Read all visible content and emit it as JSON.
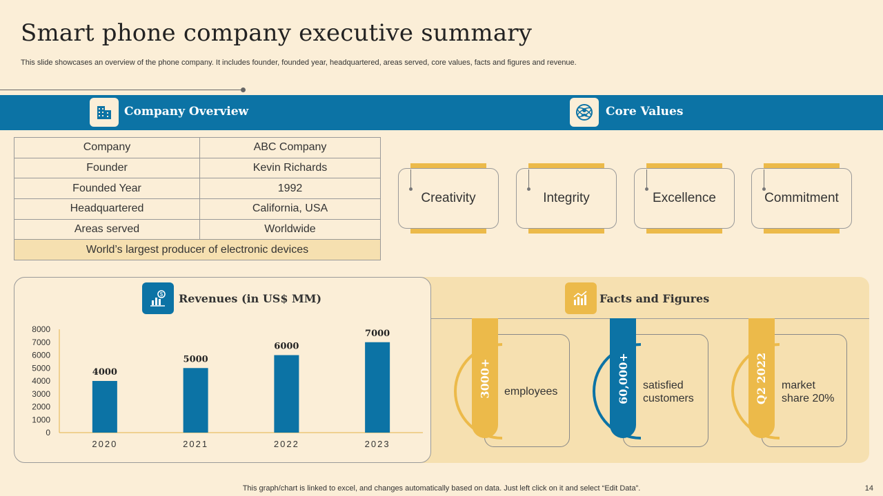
{
  "title": "Smart phone company executive summary",
  "subtitle": "This slide showcases an overview of the phone company. It includes founder, founded year, headquartered, areas served, core values, facts and figures and revenue.",
  "company_overview": {
    "heading": "Company Overview",
    "rows": [
      {
        "label": "Company",
        "value": "ABC Company"
      },
      {
        "label": "Founder",
        "value": "Kevin Richards"
      },
      {
        "label": "Founded Year",
        "value": "1992"
      },
      {
        "label": "Headquartered",
        "value": "California, USA"
      },
      {
        "label": "Areas served",
        "value": "Worldwide"
      }
    ],
    "highlight": "World’s largest producer of electronic devices"
  },
  "core_values": {
    "heading": "Core Values",
    "items": [
      "Creativity",
      "Integrity",
      "Excellence",
      "Commitment"
    ]
  },
  "revenues": {
    "heading": "Revenues (in US$ MM)"
  },
  "facts": {
    "heading": "Facts and Figures",
    "items": [
      {
        "figure": "3000+",
        "label_line1": "employees",
        "label_line2": ""
      },
      {
        "figure": "60,000+",
        "label_line1": "satisfied",
        "label_line2": "customers"
      },
      {
        "figure": "Q2 2022",
        "label_line1": "market",
        "label_line2": "share 20%"
      }
    ]
  },
  "colors": {
    "blue": "#0c73a5",
    "gold": "#ecba4a",
    "cream": "#fbeed7",
    "panel": "#f6e0b0"
  },
  "chart_data": {
    "type": "bar",
    "title": "Revenues (in US$ MM)",
    "categories": [
      "2020",
      "2021",
      "2022",
      "2023"
    ],
    "values": [
      4000,
      5000,
      6000,
      7000
    ],
    "data_labels": [
      "4000",
      "5000",
      "6000",
      "7000"
    ],
    "yticks": [
      "0",
      "1000",
      "2000",
      "3000",
      "4000",
      "5000",
      "6000",
      "7000",
      "8000"
    ],
    "ylim": [
      0,
      8000
    ],
    "xlabel": "",
    "ylabel": "",
    "color": "#0c73a5",
    "grid": false
  },
  "footer": "This graph/chart is linked to excel,  and changes automatically based on data. Just left click on it and select “Edit Data”.",
  "page_number": "14"
}
